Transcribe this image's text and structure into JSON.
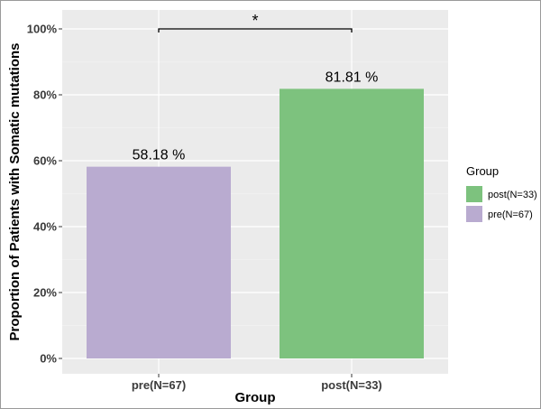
{
  "chart_data": {
    "type": "bar",
    "categories": [
      "pre(N=67)",
      "post(N=33)"
    ],
    "values": [
      58.18,
      81.81
    ],
    "value_labels": [
      "58.18 %",
      "81.81 %"
    ],
    "colors": [
      "#b9abd0",
      "#7dc27e"
    ],
    "xlabel": "Group",
    "ylabel": "Proportion of Patients with Somatic mutations",
    "ylim": [
      0,
      100
    ],
    "yticks": [
      0,
      20,
      40,
      60,
      80,
      100
    ],
    "ytick_labels": [
      "0%",
      "20%",
      "40%",
      "60%",
      "80%",
      "100%"
    ],
    "grid": true,
    "panel_background": "#ebebeb",
    "significance": {
      "between": [
        "pre(N=67)",
        "post(N=33)"
      ],
      "y": 100,
      "label": "*"
    },
    "legend": {
      "title": "Group",
      "position": "right",
      "entries": [
        {
          "label": "post(N=33)",
          "color": "#7dc27e"
        },
        {
          "label": "pre(N=67)",
          "color": "#b9abd0"
        }
      ]
    }
  }
}
